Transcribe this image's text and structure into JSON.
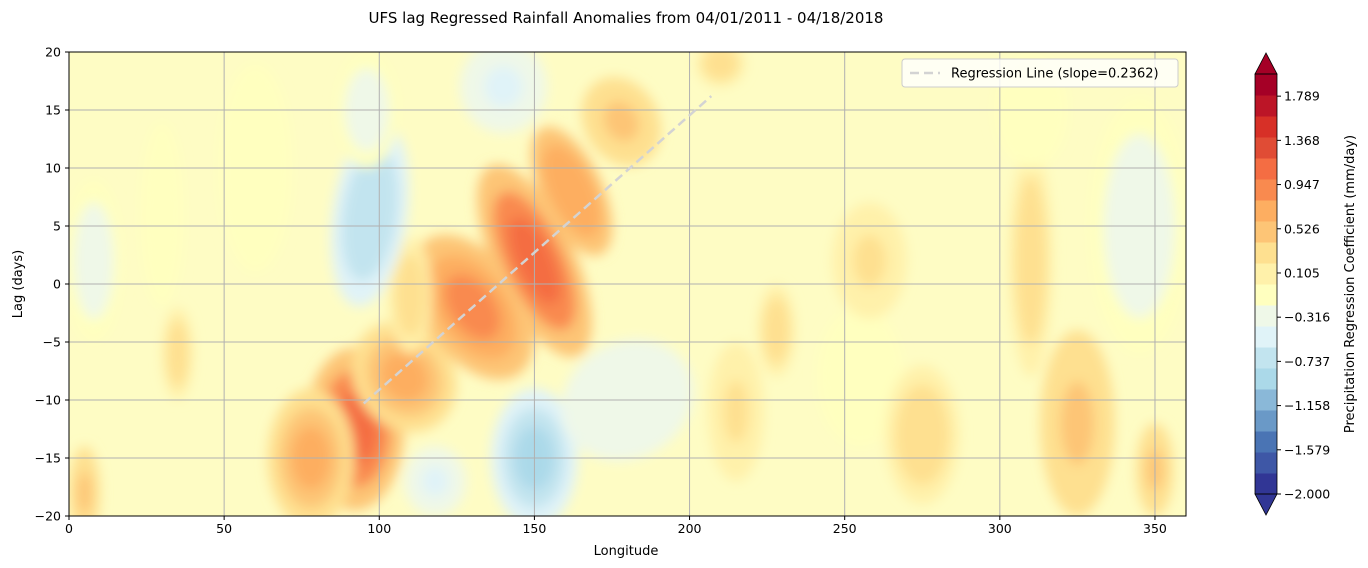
{
  "chart_data": {
    "type": "heatmap",
    "title": "UFS lag Regressed Rainfall Anomalies from 04/01/2011 - 04/18/2018",
    "xlabel": "Longitude",
    "ylabel": "Lag (days)",
    "xlim": [
      0,
      360
    ],
    "ylim": [
      -20,
      20
    ],
    "xticks": [
      "0",
      "50",
      "100",
      "150",
      "200",
      "250",
      "300",
      "350"
    ],
    "yticks": [
      "20",
      "15",
      "10",
      "5",
      "0",
      "−5",
      "−10",
      "−15",
      "−20"
    ],
    "grid": true,
    "legend": {
      "position": "top-right",
      "entries": [
        {
          "label": "Regression Line (slope=0.2362)",
          "style": "dashed",
          "color": "#d3d3d3"
        }
      ]
    },
    "regression_line": {
      "x": [
        95,
        207
      ],
      "y": [
        -10.3,
        16.2
      ],
      "slope": 0.2362
    },
    "colorbar": {
      "label": "Precipitation Regression Coefficient (mm/day)",
      "min": -2.0,
      "max": 2.0,
      "tick_labels": [
        "−2.000",
        "−1.579",
        "−1.158",
        "−0.737",
        "−0.316",
        "0.105",
        "0.526",
        "0.947",
        "1.368",
        "1.789"
      ],
      "tick_values": [
        -2.0,
        -1.579,
        -1.158,
        -0.737,
        -0.316,
        0.105,
        0.526,
        0.947,
        1.368,
        1.789
      ],
      "extend": "both",
      "colors": [
        "#313695",
        "#3e57a6",
        "#4a74b4",
        "#6a99c7",
        "#8ab8d8",
        "#abd9e9",
        "#c2e4ef",
        "#e0f3f8",
        "#eff8e8",
        "#ffffbf",
        "#fff1aa",
        "#fee090",
        "#fdc576",
        "#fdae61",
        "#f98a4f",
        "#f46d43",
        "#e04c35",
        "#d73027",
        "#bc1527",
        "#a50026"
      ]
    },
    "anomalies": [
      {
        "x": 92,
        "y": -12.5,
        "sx": 16,
        "sy": 7,
        "rot": 0,
        "v": 1.05
      },
      {
        "x": 78,
        "y": -15,
        "sx": 14,
        "sy": 6,
        "rot": 0,
        "v": 0.7
      },
      {
        "x": 108,
        "y": -8,
        "sx": 16,
        "sy": 5,
        "rot": 35,
        "v": 0.65
      },
      {
        "x": 130,
        "y": -2,
        "sx": 16,
        "sy": 7,
        "rot": 35,
        "v": 0.95
      },
      {
        "x": 150,
        "y": 2,
        "sx": 13,
        "sy": 9,
        "rot": 25,
        "v": 1.05
      },
      {
        "x": 162,
        "y": 8,
        "sx": 10,
        "sy": 6,
        "rot": 25,
        "v": 0.75
      },
      {
        "x": 178,
        "y": 14,
        "sx": 12,
        "sy": 4,
        "rot": 30,
        "v": 0.5
      },
      {
        "x": 110,
        "y": -1,
        "sx": 7,
        "sy": 5,
        "rot": 0,
        "v": 0.35
      },
      {
        "x": 210,
        "y": 19,
        "sx": 8,
        "sy": 2,
        "rot": 0,
        "v": 0.3
      },
      {
        "x": 97,
        "y": 6,
        "sx": 12,
        "sy": 8,
        "rot": -8,
        "v": -0.75
      },
      {
        "x": 96,
        "y": 15,
        "sx": 10,
        "sy": 5,
        "rot": 0,
        "v": -0.35
      },
      {
        "x": 140,
        "y": 17,
        "sx": 14,
        "sy": 4,
        "rot": 0,
        "v": -0.5
      },
      {
        "x": 150,
        "y": -15,
        "sx": 14,
        "sy": 6,
        "rot": 0,
        "v": -0.8
      },
      {
        "x": 118,
        "y": -17,
        "sx": 10,
        "sy": 3,
        "rot": 0,
        "v": -0.45
      },
      {
        "x": 180,
        "y": -10,
        "sx": 22,
        "sy": 5,
        "rot": 30,
        "v": -0.4
      },
      {
        "x": 8,
        "y": 2,
        "sx": 9,
        "sy": 7,
        "rot": 0,
        "v": -0.3
      },
      {
        "x": 30,
        "y": 6,
        "sx": 7,
        "sy": 8,
        "rot": 0,
        "v": -0.2
      },
      {
        "x": 60,
        "y": 10,
        "sx": 12,
        "sy": 9,
        "rot": 0,
        "v": -0.15
      },
      {
        "x": 345,
        "y": 5,
        "sx": 16,
        "sy": 11,
        "rot": 0,
        "v": -0.3
      },
      {
        "x": 255,
        "y": -8,
        "sx": 14,
        "sy": 6,
        "rot": 0,
        "v": -0.2
      },
      {
        "x": 5,
        "y": -18,
        "sx": 5,
        "sy": 4,
        "rot": 0,
        "v": 0.45
      },
      {
        "x": 35,
        "y": -6,
        "sx": 5,
        "sy": 4,
        "rot": 0,
        "v": 0.35
      },
      {
        "x": 215,
        "y": -11,
        "sx": 9,
        "sy": 6,
        "rot": 0,
        "v": 0.2
      },
      {
        "x": 228,
        "y": -4,
        "sx": 6,
        "sy": 4,
        "rot": 0,
        "v": 0.3
      },
      {
        "x": 275,
        "y": -13,
        "sx": 12,
        "sy": 6,
        "rot": 0,
        "v": 0.35
      },
      {
        "x": 258,
        "y": 2,
        "sx": 12,
        "sy": 5,
        "rot": 0,
        "v": 0.2
      },
      {
        "x": 325,
        "y": -12,
        "sx": 12,
        "sy": 8,
        "rot": 0,
        "v": 0.45
      },
      {
        "x": 350,
        "y": -16,
        "sx": 6,
        "sy": 4,
        "rot": 0,
        "v": 0.5
      },
      {
        "x": 310,
        "y": 2,
        "sx": 7,
        "sy": 10,
        "rot": 0,
        "v": 0.25
      },
      {
        "x": 310,
        "y": 15,
        "sx": 12,
        "sy": 5,
        "rot": 0,
        "v": -0.15
      }
    ]
  }
}
